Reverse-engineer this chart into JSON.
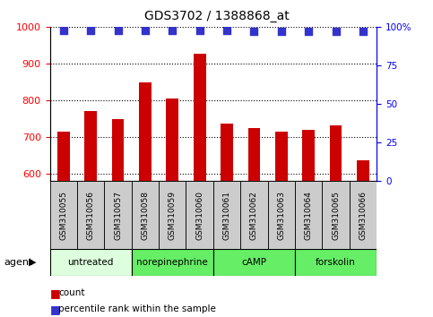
{
  "title": "GDS3702 / 1388868_at",
  "samples": [
    "GSM310055",
    "GSM310056",
    "GSM310057",
    "GSM310058",
    "GSM310059",
    "GSM310060",
    "GSM310061",
    "GSM310062",
    "GSM310063",
    "GSM310064",
    "GSM310065",
    "GSM310066"
  ],
  "counts": [
    714,
    770,
    748,
    848,
    805,
    928,
    737,
    725,
    714,
    718,
    730,
    635
  ],
  "percentiles": [
    98,
    98,
    98,
    98,
    98,
    98,
    98,
    97,
    97,
    97,
    97,
    97
  ],
  "ylim_left": [
    580,
    1000
  ],
  "ylim_right": [
    0,
    100
  ],
  "bar_color": "#cc0000",
  "dot_color": "#3333cc",
  "agents": [
    {
      "label": "untreated",
      "start": 0,
      "end": 3,
      "color": "#ddffdd"
    },
    {
      "label": "norepinephrine",
      "start": 3,
      "end": 6,
      "color": "#66ee66"
    },
    {
      "label": "cAMP",
      "start": 6,
      "end": 9,
      "color": "#66ee66"
    },
    {
      "label": "forskolin",
      "start": 9,
      "end": 12,
      "color": "#66ee66"
    }
  ],
  "sample_box_color": "#cccccc",
  "agent_label": "agent",
  "legend_count_label": "count",
  "legend_pct_label": "percentile rank within the sample",
  "bar_width": 0.45,
  "dot_size": 35,
  "left_yticks": [
    600,
    700,
    800,
    900,
    1000
  ],
  "right_ytick_labels": [
    "0",
    "25",
    "50",
    "75",
    "100%"
  ],
  "right_ytick_vals": [
    0,
    25,
    50,
    75,
    100
  ]
}
